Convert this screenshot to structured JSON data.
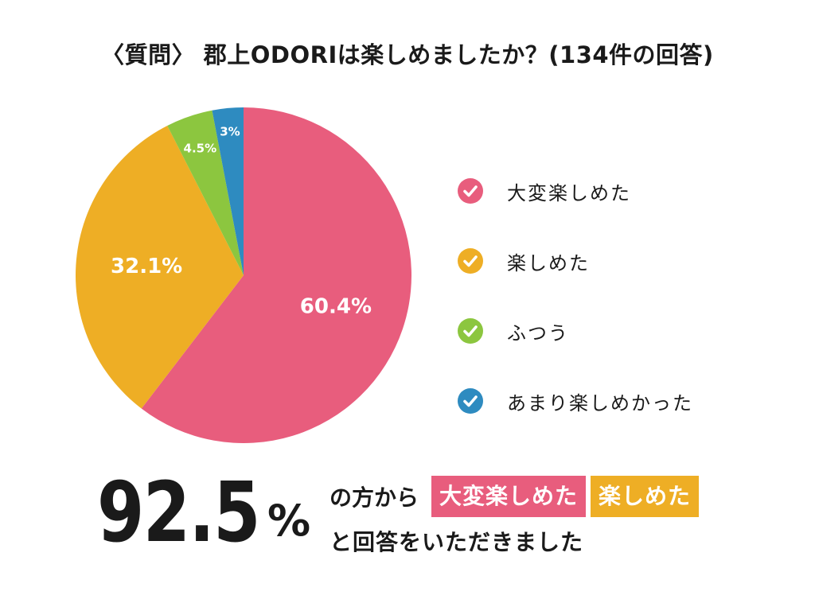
{
  "title": "〈質問〉 郡上ODORIは楽しめましたか？(134件の回答)",
  "chart_data": {
    "type": "pie",
    "slices": [
      {
        "label": "大変楽しめた",
        "value": 60.4,
        "display": "60.4%",
        "color": "#E85D7D"
      },
      {
        "label": "楽しめた",
        "value": 32.1,
        "display": "32.1%",
        "color": "#EEAE25"
      },
      {
        "label": "ふつう",
        "value": 4.5,
        "display": "4.5%",
        "color": "#8CC63F"
      },
      {
        "label": "あまり楽しめかった",
        "value": 3,
        "display": "3%",
        "color": "#2E8BC0"
      }
    ],
    "legend_position": "right"
  },
  "summary": {
    "big_number": "92.5",
    "unit": "%",
    "line1_prefix": "の方から",
    "tag1": "大変楽しめた",
    "tag1_color": "#E85D7D",
    "tag2": "楽しめた",
    "tag2_color": "#EEAE25",
    "line2": "と回答をいただきました"
  }
}
